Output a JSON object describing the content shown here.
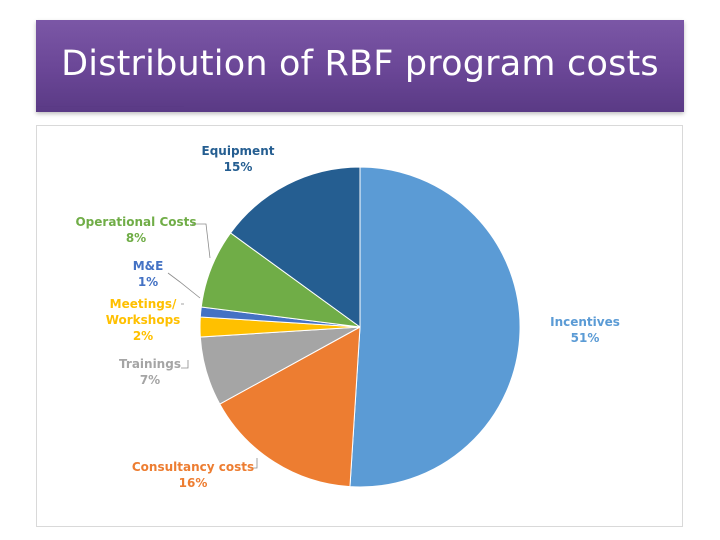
{
  "slide": {
    "title": "Distribution of RBF program costs"
  },
  "chart_data": {
    "type": "pie",
    "title": "",
    "slices": [
      {
        "label": "Incentives",
        "value_label": "51%",
        "value": 51,
        "color": "#5b9bd5"
      },
      {
        "label": "Consultancy costs",
        "value_label": "16%",
        "value": 16,
        "color": "#ed7d31"
      },
      {
        "label": "Trainings",
        "value_label": "7%",
        "value": 7,
        "color": "#a5a5a5"
      },
      {
        "label": "Meetings/ Workshops",
        "value_label": "2%",
        "value": 2,
        "color": "#ffc000"
      },
      {
        "label": "M&E",
        "value_label": "1%",
        "value": 1,
        "color": "#4472c4"
      },
      {
        "label": "Operational Costs",
        "value_label": "8%",
        "value": 8,
        "color": "#70ad47"
      },
      {
        "label": "Equipment",
        "value_label": "15%",
        "value": 15,
        "color": "#255e91"
      }
    ],
    "legend": "none"
  }
}
